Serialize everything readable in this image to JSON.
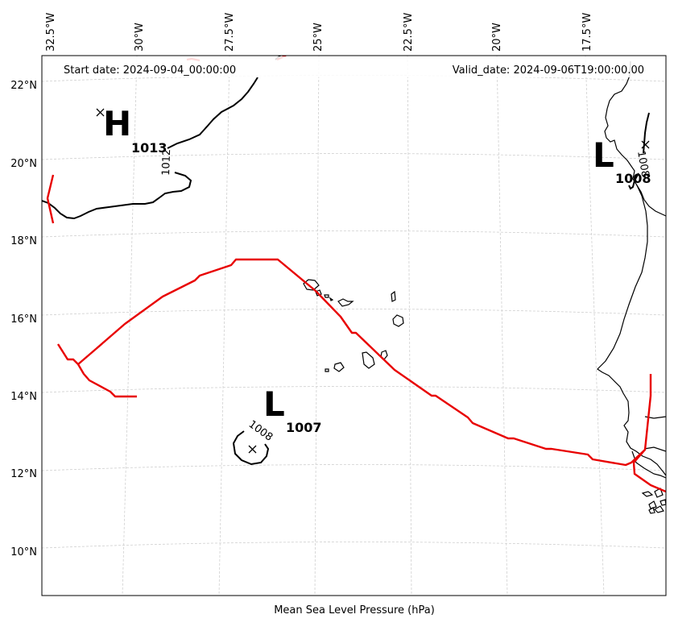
{
  "header": {
    "start_date": "Start date: 2024-09-04_00:00:00",
    "valid_date": "Valid_date: 2024-09-06T19:00:00.00"
  },
  "caption": "Mean Sea Level Pressure (hPa)",
  "axes": {
    "lon_labels": [
      "32.5°W",
      "30°W",
      "27.5°W",
      "25°W",
      "22.5°W",
      "20°W",
      "17.5°W"
    ],
    "lat_labels": [
      "22°N",
      "20°N",
      "18°N",
      "16°N",
      "14°N",
      "12°N",
      "10°N"
    ]
  },
  "pressure_centers": [
    {
      "type": "H",
      "value": "1013"
    },
    {
      "type": "L",
      "value": "1007"
    },
    {
      "type": "L",
      "value": "1008"
    }
  ],
  "contour_labels": [
    "1012",
    "1008",
    "1008"
  ],
  "colors": {
    "track": "#e80000",
    "isobar": "#000000",
    "coastline": "#000000",
    "grid": "#cfcfcf"
  },
  "map_data": {
    "projection": "Lambert-like conic",
    "lon_range": [
      -33.0,
      -16.5
    ],
    "lat_range": [
      9.0,
      22.8
    ],
    "grid": true,
    "track_color_name": "red"
  }
}
